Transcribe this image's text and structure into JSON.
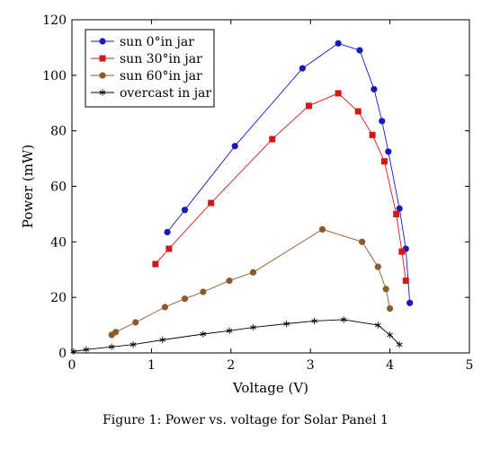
{
  "chart_data": {
    "type": "line",
    "title": "",
    "xlabel": "Voltage (V)",
    "ylabel": "Power (mW)",
    "xlim": [
      0,
      5
    ],
    "ylim": [
      0,
      120
    ],
    "xticks": [
      0,
      1,
      2,
      3,
      4,
      5
    ],
    "yticks": [
      0,
      20,
      40,
      60,
      80,
      100,
      120
    ],
    "grid": false,
    "legend_position": "top-left",
    "series": [
      {
        "name": "sun 0°in jar",
        "color": "#1a1ab8",
        "marker": "circle",
        "x": [
          1.2,
          1.42,
          2.05,
          2.9,
          3.35,
          3.62,
          3.8,
          3.9,
          3.98,
          4.12,
          4.2,
          4.25
        ],
        "y": [
          43.5,
          51.5,
          74.5,
          102.5,
          111.5,
          109.0,
          95.0,
          83.5,
          72.5,
          52.0,
          37.5,
          18.0
        ]
      },
      {
        "name": "sun 30°in jar",
        "color": "#d01818",
        "marker": "square",
        "x": [
          1.05,
          1.22,
          1.75,
          2.52,
          2.98,
          3.35,
          3.6,
          3.78,
          3.93,
          4.08,
          4.15,
          4.2
        ],
        "y": [
          32.0,
          37.5,
          54.0,
          77.0,
          89.0,
          93.5,
          87.0,
          78.5,
          69.0,
          50.0,
          36.5,
          26.0
        ]
      },
      {
        "name": "sun 60°in jar",
        "color": "#8b5a2b",
        "marker": "circle",
        "x": [
          0.5,
          0.55,
          0.8,
          1.17,
          1.42,
          1.65,
          1.98,
          2.28,
          3.15,
          3.65,
          3.85,
          3.95,
          4.0
        ],
        "y": [
          6.5,
          7.5,
          11.0,
          16.5,
          19.5,
          22.0,
          26.0,
          29.0,
          44.5,
          40.0,
          31.0,
          23.0,
          16.0
        ]
      },
      {
        "name": "overcast in jar",
        "color": "#000000",
        "marker": "star",
        "x": [
          0.02,
          0.18,
          0.5,
          0.77,
          1.14,
          1.65,
          1.98,
          2.28,
          2.7,
          3.05,
          3.42,
          3.85,
          4.0,
          4.12
        ],
        "y": [
          0.5,
          1.2,
          2.2,
          3.0,
          4.7,
          6.8,
          8.0,
          9.2,
          10.5,
          11.5,
          12.0,
          10.0,
          6.5,
          3.0
        ]
      }
    ]
  },
  "caption": "Figure 1: Power vs. voltage for Solar Panel 1"
}
